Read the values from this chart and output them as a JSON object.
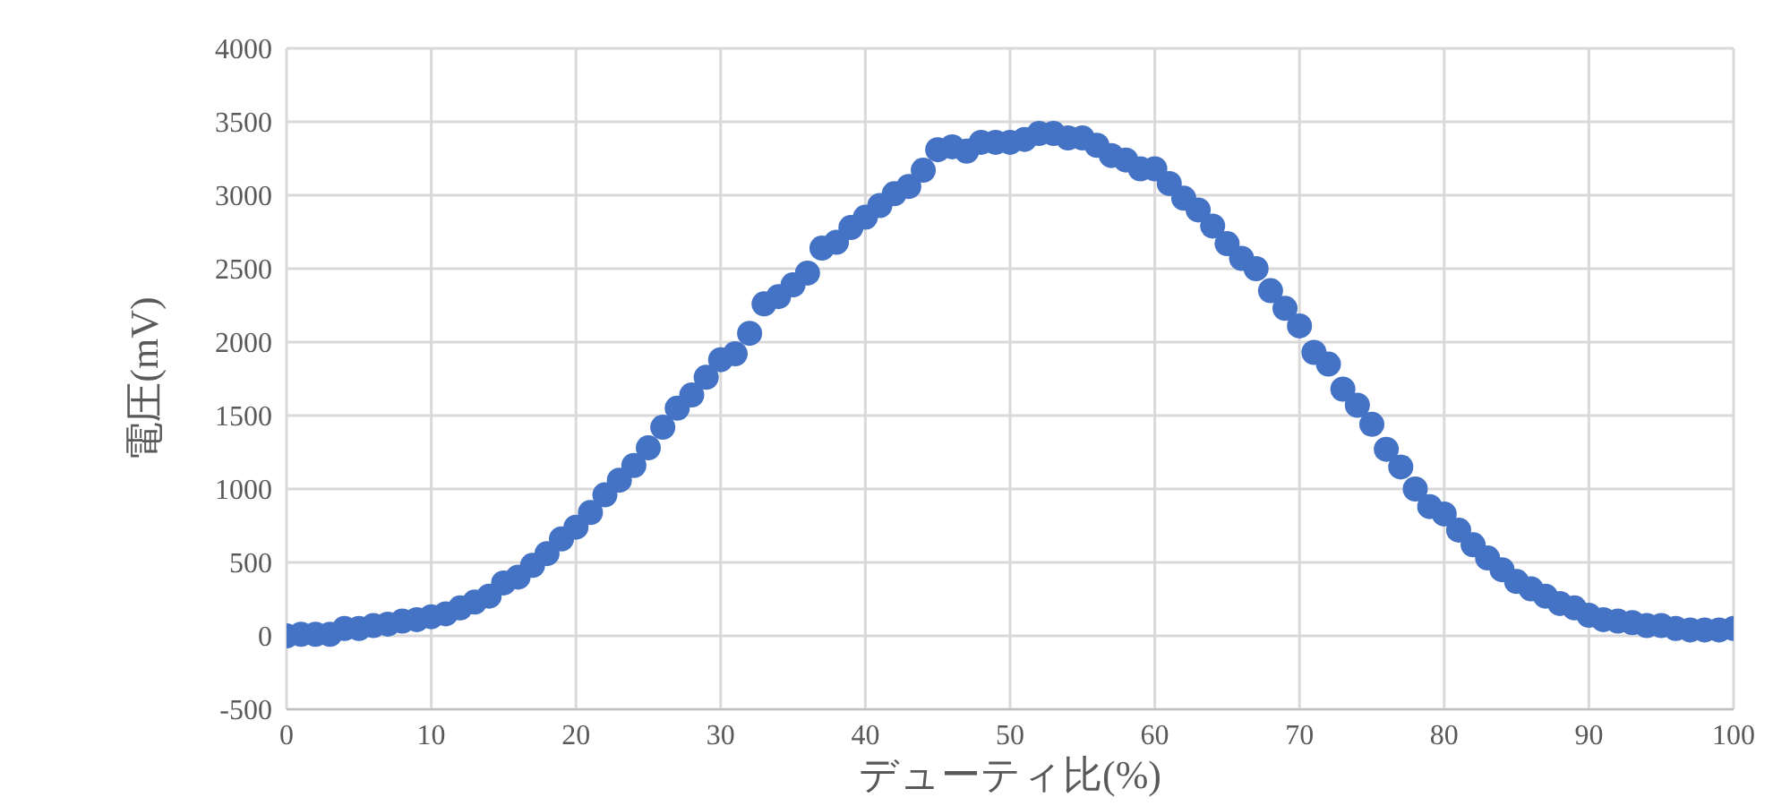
{
  "chart_data": {
    "type": "scatter",
    "xlabel": "デューティ比(%)",
    "ylabel": "電圧(mV)",
    "x": [
      0,
      1,
      2,
      3,
      4,
      5,
      6,
      7,
      8,
      9,
      10,
      11,
      12,
      13,
      14,
      15,
      16,
      17,
      18,
      19,
      20,
      21,
      22,
      23,
      24,
      25,
      26,
      27,
      28,
      29,
      30,
      31,
      32,
      33,
      34,
      35,
      36,
      37,
      38,
      39,
      40,
      41,
      42,
      43,
      44,
      45,
      46,
      47,
      48,
      49,
      50,
      51,
      52,
      53,
      54,
      55,
      56,
      57,
      58,
      59,
      60,
      61,
      62,
      63,
      64,
      65,
      66,
      67,
      68,
      69,
      70,
      71,
      72,
      73,
      74,
      75,
      76,
      77,
      78,
      79,
      80,
      81,
      82,
      83,
      84,
      85,
      86,
      87,
      88,
      89,
      90,
      91,
      92,
      93,
      94,
      95,
      96,
      97,
      98,
      99,
      100
    ],
    "series": [
      {
        "color": "#4472c4",
        "values": [
          0,
          10,
          10,
          10,
          50,
          50,
          70,
          80,
          100,
          110,
          130,
          150,
          190,
          230,
          270,
          360,
          400,
          480,
          560,
          660,
          740,
          840,
          960,
          1060,
          1160,
          1280,
          1420,
          1550,
          1640,
          1760,
          1880,
          1920,
          2060,
          2260,
          2310,
          2390,
          2470,
          2640,
          2680,
          2780,
          2850,
          2930,
          3010,
          3060,
          3170,
          3310,
          3330,
          3300,
          3360,
          3360,
          3360,
          3380,
          3420,
          3420,
          3390,
          3390,
          3340,
          3270,
          3240,
          3180,
          3180,
          3080,
          2980,
          2900,
          2790,
          2670,
          2570,
          2500,
          2350,
          2230,
          2110,
          1930,
          1850,
          1680,
          1570,
          1440,
          1270,
          1150,
          1000,
          880,
          830,
          720,
          620,
          530,
          450,
          370,
          320,
          270,
          220,
          190,
          140,
          110,
          100,
          90,
          70,
          70,
          50,
          40,
          40,
          40,
          50
        ]
      }
    ],
    "xlim": [
      0,
      100
    ],
    "xticks": [
      0,
      10,
      20,
      30,
      40,
      50,
      60,
      70,
      80,
      90,
      100
    ],
    "ylim": [
      -500,
      4000
    ],
    "yticks": [
      -500,
      0,
      500,
      1000,
      1500,
      2000,
      2500,
      3000,
      3500,
      4000
    ],
    "grid": true,
    "legend": false,
    "marker": "circle"
  }
}
